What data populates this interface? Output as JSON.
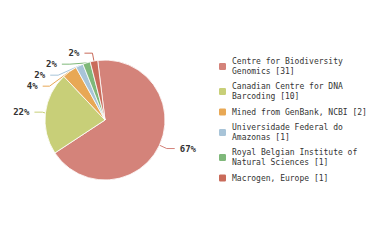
{
  "chart_data": {
    "type": "pie",
    "categories": [
      "Centre for Biodiversity\nGenomics [31]",
      "Canadian Centre for DNA\nBarcoding [10]",
      "Mined from GenBank, NCBI [2]",
      "Universidade Federal do\nAmazonas [1]",
      "Royal Belgian Institute of\nNatural Sciences [1]",
      "Macrogen, Europe [1]"
    ],
    "values": [
      67,
      22,
      4,
      2,
      2,
      2
    ],
    "value_labels": [
      "67%",
      "22%",
      "4%",
      "2%",
      "2%",
      "2%"
    ],
    "colors": [
      "#d4837a",
      "#c8cf78",
      "#e8a855",
      "#a8c4d8",
      "#7fb87a",
      "#c96b5a"
    ],
    "legend": "right",
    "data_labels": true
  }
}
